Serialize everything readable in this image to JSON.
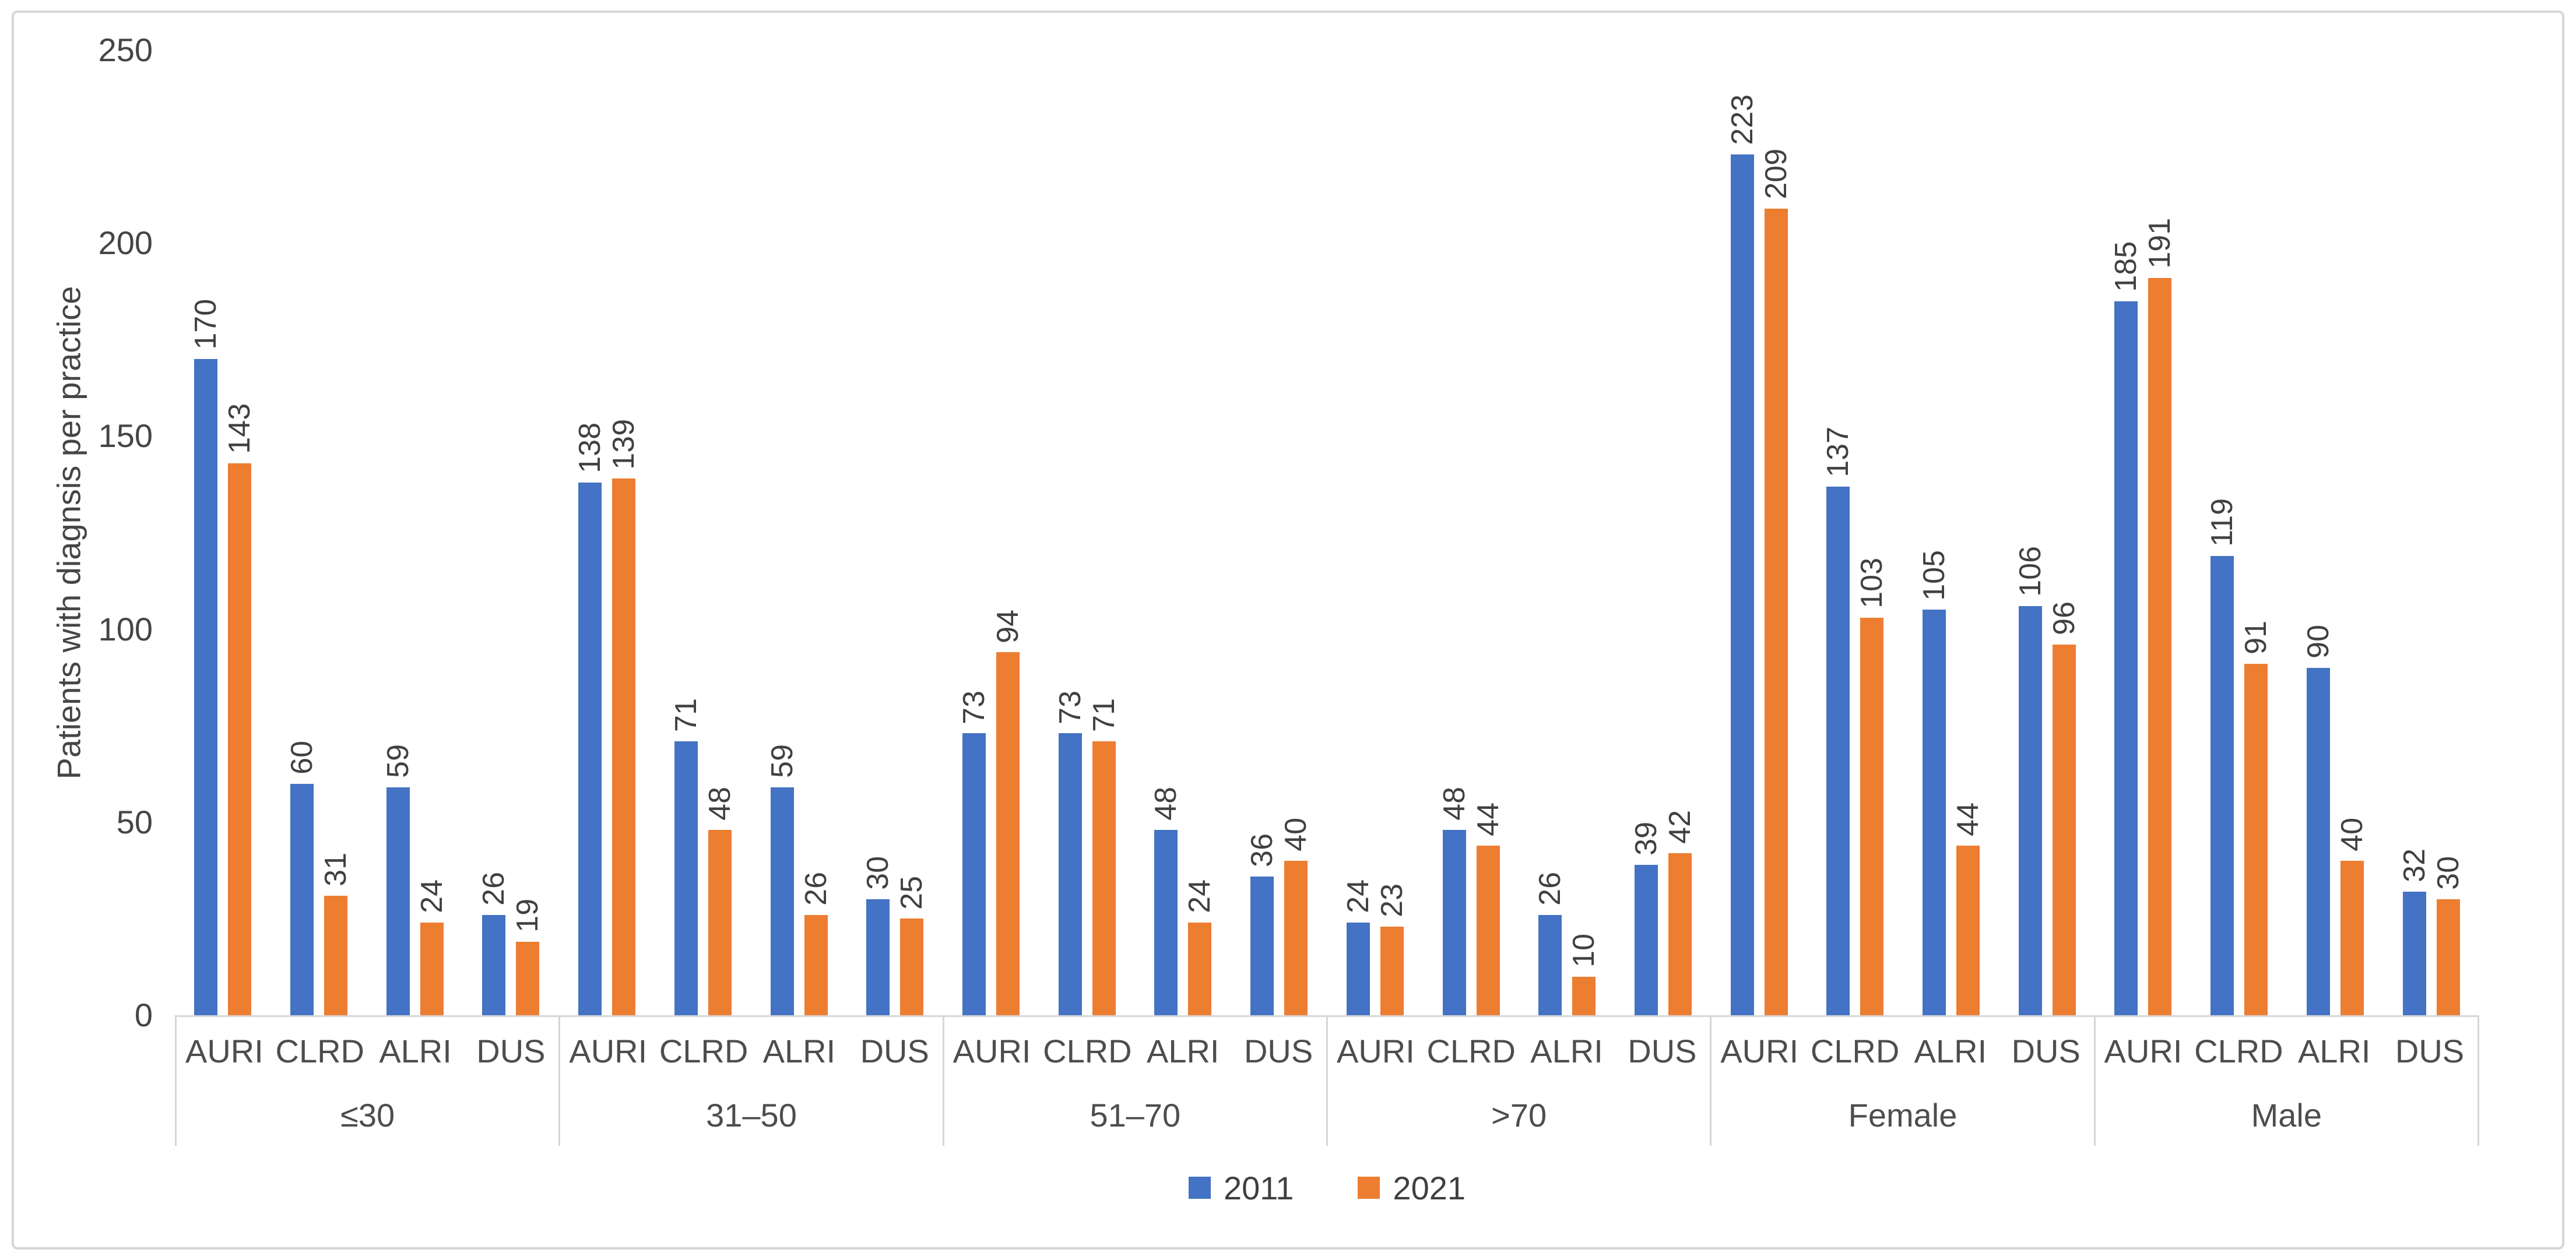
{
  "chart_data": {
    "type": "bar",
    "title": "",
    "ylabel": "Patients with diagnsis per practice",
    "xlabel": "",
    "ylim": [
      0,
      250
    ],
    "yticks": [
      0,
      50,
      100,
      150,
      200,
      250
    ],
    "grid": false,
    "legend_position": "bottom",
    "series_names": [
      "2011",
      "2021"
    ],
    "series_colors": {
      "2011": "#4472C4",
      "2021": "#ED7D31"
    },
    "categories": [
      "AURI",
      "CLRD",
      "ALRI",
      "DUS"
    ],
    "groups": [
      {
        "label": "≤30",
        "series": [
          {
            "name": "2011",
            "values": [
              170,
              60,
              59,
              26
            ]
          },
          {
            "name": "2021",
            "values": [
              143,
              31,
              24,
              19
            ]
          }
        ]
      },
      {
        "label": "31–50",
        "series": [
          {
            "name": "2011",
            "values": [
              138,
              71,
              59,
              30
            ]
          },
          {
            "name": "2021",
            "values": [
              139,
              48,
              26,
              25
            ]
          }
        ]
      },
      {
        "label": "51–70",
        "series": [
          {
            "name": "2011",
            "values": [
              73,
              73,
              48,
              36
            ]
          },
          {
            "name": "2021",
            "values": [
              94,
              71,
              24,
              40
            ]
          }
        ]
      },
      {
        "label": ">70",
        "series": [
          {
            "name": "2011",
            "values": [
              24,
              48,
              26,
              39
            ]
          },
          {
            "name": "2021",
            "values": [
              23,
              44,
              10,
              42
            ]
          }
        ]
      },
      {
        "label": "Female",
        "series": [
          {
            "name": "2011",
            "values": [
              223,
              137,
              105,
              106
            ]
          },
          {
            "name": "2021",
            "values": [
              209,
              103,
              44,
              96
            ]
          }
        ]
      },
      {
        "label": "Male",
        "series": [
          {
            "name": "2011",
            "values": [
              185,
              119,
              90,
              32
            ]
          },
          {
            "name": "2021",
            "values": [
              191,
              91,
              40,
              30
            ]
          }
        ]
      }
    ],
    "colors": {
      "axis_line": "#d6d6d6",
      "axis_text": "#4d4d4d",
      "data_label_text": "#404040"
    }
  }
}
